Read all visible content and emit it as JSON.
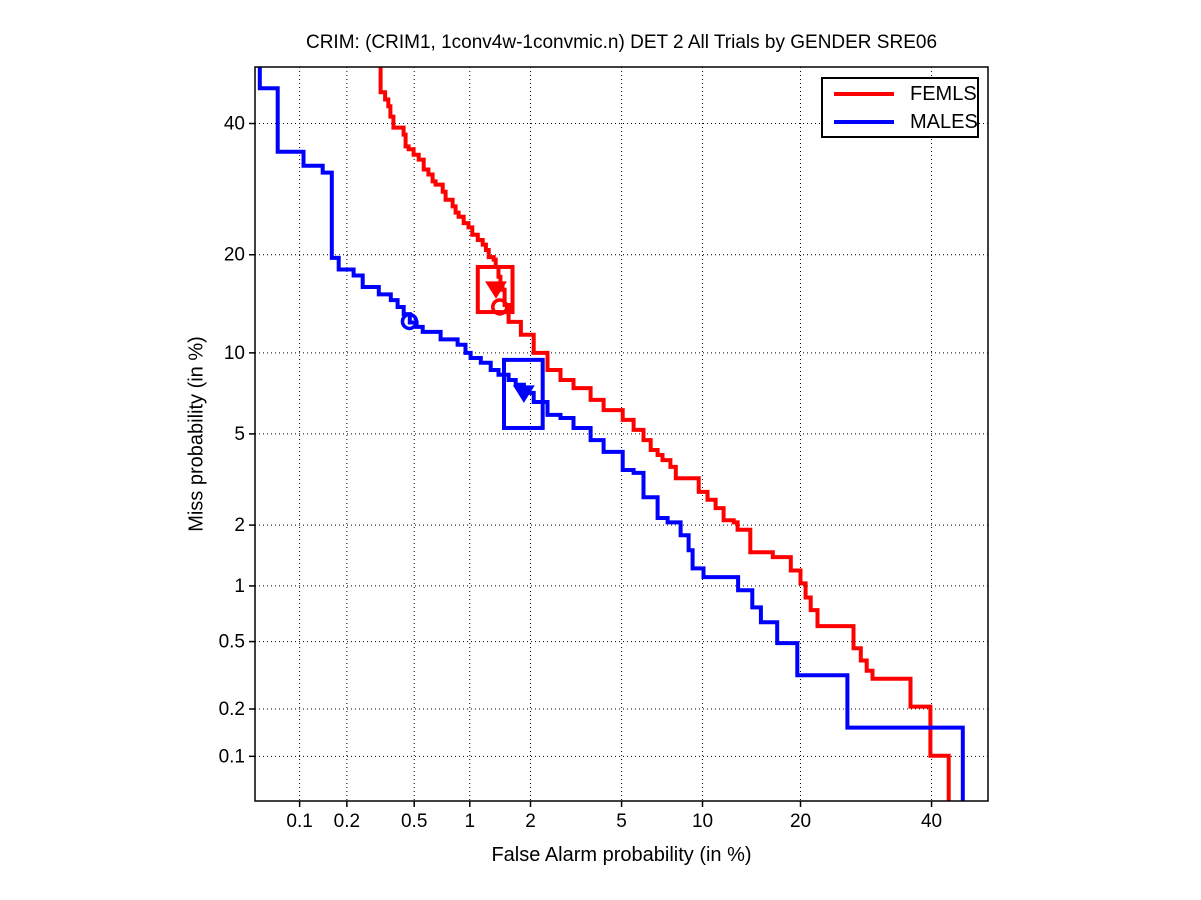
{
  "chart_data": {
    "type": "line",
    "variant": "DET curve, step plot, probit (normal-deviate) scale on both axes",
    "title": "CRIM: (CRIM1, 1conv4w-1convmic.n) DET 2 All Trials by GENDER SRE06",
    "xlabel": "False Alarm probability (in %)",
    "ylabel": "Miss probability (in %)",
    "xlim": [
      0.05,
      50
    ],
    "ylim": [
      0.05,
      50
    ],
    "xticks": [
      0.1,
      0.2,
      0.5,
      1,
      2,
      5,
      10,
      20,
      40
    ],
    "xtick_labels": [
      "0.1",
      "0.2",
      "0.5",
      "1",
      "2",
      "5",
      "10",
      "20",
      "40"
    ],
    "yticks": [
      0.1,
      0.2,
      0.5,
      1,
      2,
      5,
      10,
      20,
      40
    ],
    "ytick_labels": [
      "0.1",
      "0.2",
      "0.5",
      "1",
      "2",
      "5",
      "10",
      "20",
      "40"
    ],
    "grid": "dotted",
    "grid_color": "#000000",
    "axis_color": "#000000",
    "background": "#ffffff",
    "legend_position": "top-right",
    "series": [
      {
        "name": "FEMLS",
        "color": "#ff0000",
        "line_width": 4,
        "points": [
          [
            0.32,
            50
          ],
          [
            0.32,
            45.5
          ],
          [
            0.34,
            45.5
          ],
          [
            0.34,
            44.2
          ],
          [
            0.355,
            44.2
          ],
          [
            0.355,
            43
          ],
          [
            0.365,
            43
          ],
          [
            0.365,
            41.2
          ],
          [
            0.38,
            41.2
          ],
          [
            0.38,
            39.3
          ],
          [
            0.435,
            39.3
          ],
          [
            0.435,
            38.1
          ],
          [
            0.447,
            38.1
          ],
          [
            0.447,
            36.1
          ],
          [
            0.465,
            36.1
          ],
          [
            0.465,
            35.6
          ],
          [
            0.496,
            35.6
          ],
          [
            0.496,
            34.7
          ],
          [
            0.53,
            34.7
          ],
          [
            0.53,
            33.9
          ],
          [
            0.565,
            33.9
          ],
          [
            0.565,
            32.3
          ],
          [
            0.6,
            32.3
          ],
          [
            0.6,
            31.5
          ],
          [
            0.633,
            31.5
          ],
          [
            0.633,
            30.4
          ],
          [
            0.657,
            30.4
          ],
          [
            0.657,
            29.9
          ],
          [
            0.718,
            29.9
          ],
          [
            0.718,
            28.8
          ],
          [
            0.745,
            28.8
          ],
          [
            0.745,
            27.6
          ],
          [
            0.812,
            27.6
          ],
          [
            0.812,
            26.6
          ],
          [
            0.842,
            26.6
          ],
          [
            0.842,
            25.7
          ],
          [
            0.874,
            25.7
          ],
          [
            0.874,
            25.1
          ],
          [
            0.93,
            25.1
          ],
          [
            0.93,
            24.2
          ],
          [
            0.985,
            24.2
          ],
          [
            0.985,
            23.6
          ],
          [
            1.03,
            23.6
          ],
          [
            1.03,
            22.6
          ],
          [
            1.1,
            22.6
          ],
          [
            1.1,
            21.9
          ],
          [
            1.165,
            21.9
          ],
          [
            1.165,
            21.3
          ],
          [
            1.21,
            21.3
          ],
          [
            1.21,
            20.6
          ],
          [
            1.25,
            20.6
          ],
          [
            1.25,
            19.7
          ],
          [
            1.325,
            19.7
          ],
          [
            1.325,
            19.4
          ],
          [
            1.355,
            19.4
          ],
          [
            1.355,
            18.5
          ],
          [
            1.4,
            18.5
          ],
          [
            1.4,
            17.35
          ],
          [
            1.43,
            17.35
          ],
          [
            1.43,
            16.45
          ],
          [
            1.465,
            16.45
          ],
          [
            1.465,
            15.9
          ],
          [
            1.5,
            15.9
          ],
          [
            1.5,
            14.3
          ],
          [
            1.57,
            14.3
          ],
          [
            1.57,
            12.66
          ],
          [
            1.8,
            12.66
          ],
          [
            1.8,
            11.5
          ],
          [
            2.07,
            11.5
          ],
          [
            2.07,
            10
          ],
          [
            2.4,
            10
          ],
          [
            2.4,
            8.72
          ],
          [
            2.75,
            8.72
          ],
          [
            2.75,
            8.03
          ],
          [
            3.14,
            8.03
          ],
          [
            3.14,
            7.5
          ],
          [
            3.72,
            7.5
          ],
          [
            3.72,
            6.78
          ],
          [
            4.22,
            6.78
          ],
          [
            4.22,
            6.2
          ],
          [
            5.05,
            6.2
          ],
          [
            5.05,
            5.68
          ],
          [
            5.58,
            5.68
          ],
          [
            5.58,
            5.19
          ],
          [
            6.1,
            5.19
          ],
          [
            6.1,
            4.72
          ],
          [
            6.5,
            4.72
          ],
          [
            6.5,
            4.3
          ],
          [
            6.9,
            4.3
          ],
          [
            6.9,
            4.1
          ],
          [
            7.2,
            4.1
          ],
          [
            7.2,
            3.9
          ],
          [
            7.7,
            3.9
          ],
          [
            7.7,
            3.65
          ],
          [
            8.05,
            3.65
          ],
          [
            8.05,
            3.26
          ],
          [
            9.7,
            3.26
          ],
          [
            9.7,
            2.84
          ],
          [
            10.4,
            2.84
          ],
          [
            10.4,
            2.62
          ],
          [
            11.07,
            2.62
          ],
          [
            11.07,
            2.4
          ],
          [
            11.76,
            2.4
          ],
          [
            11.76,
            2.11
          ],
          [
            12.68,
            2.11
          ],
          [
            12.68,
            2.06
          ],
          [
            13.05,
            2.06
          ],
          [
            13.05,
            1.9
          ],
          [
            14.3,
            1.9
          ],
          [
            14.3,
            1.48
          ],
          [
            16.7,
            1.48
          ],
          [
            16.7,
            1.4
          ],
          [
            18.8,
            1.4
          ],
          [
            18.8,
            1.2
          ],
          [
            20,
            1.2
          ],
          [
            20,
            1.03
          ],
          [
            20.65,
            1.03
          ],
          [
            20.65,
            0.87
          ],
          [
            21.3,
            0.87
          ],
          [
            21.3,
            0.745
          ],
          [
            22.2,
            0.745
          ],
          [
            22.2,
            0.61
          ],
          [
            27.3,
            0.61
          ],
          [
            27.3,
            0.458
          ],
          [
            28.4,
            0.458
          ],
          [
            28.4,
            0.39
          ],
          [
            29.3,
            0.39
          ],
          [
            29.3,
            0.34
          ],
          [
            30.2,
            0.34
          ],
          [
            30.2,
            0.305
          ],
          [
            36.4,
            0.305
          ],
          [
            36.4,
            0.207
          ],
          [
            39.8,
            0.207
          ],
          [
            39.8,
            0.101
          ],
          [
            43,
            0.101
          ],
          [
            43,
            0.05
          ]
        ],
        "box": {
          "fa": [
            1.1,
            1.64
          ],
          "miss": [
            13.6,
            18.5
          ]
        },
        "markers": [
          {
            "shape": "triangle-down",
            "filled": true,
            "fa": 1.36,
            "miss": 16.0
          },
          {
            "shape": "circle",
            "filled": false,
            "fa": 1.42,
            "miss": 14.1
          }
        ]
      },
      {
        "name": "MALES",
        "color": "#0000ff",
        "line_width": 4,
        "points": [
          [
            0.054,
            50
          ],
          [
            0.054,
            46.2
          ],
          [
            0.0715,
            46.2
          ],
          [
            0.0715,
            35.2
          ],
          [
            0.106,
            35.2
          ],
          [
            0.106,
            32.9
          ],
          [
            0.141,
            32.9
          ],
          [
            0.141,
            31.8
          ],
          [
            0.161,
            31.8
          ],
          [
            0.161,
            19.6
          ],
          [
            0.178,
            19.6
          ],
          [
            0.178,
            18.2
          ],
          [
            0.22,
            18.2
          ],
          [
            0.22,
            17.5
          ],
          [
            0.25,
            17.5
          ],
          [
            0.25,
            16.2
          ],
          [
            0.312,
            16.2
          ],
          [
            0.312,
            15.4
          ],
          [
            0.367,
            15.4
          ],
          [
            0.367,
            14.8
          ],
          [
            0.402,
            14.8
          ],
          [
            0.402,
            14.1
          ],
          [
            0.436,
            14.1
          ],
          [
            0.436,
            13.4
          ],
          [
            0.472,
            13.4
          ],
          [
            0.472,
            12.6
          ],
          [
            0.516,
            12.6
          ],
          [
            0.516,
            12.2
          ],
          [
            0.558,
            12.2
          ],
          [
            0.558,
            11.75
          ],
          [
            0.7,
            11.75
          ],
          [
            0.7,
            11.1
          ],
          [
            0.863,
            11.1
          ],
          [
            0.863,
            10.65
          ],
          [
            0.95,
            10.65
          ],
          [
            0.95,
            10
          ],
          [
            1.01,
            10
          ],
          [
            1.01,
            9.6
          ],
          [
            1.14,
            9.6
          ],
          [
            1.14,
            9.24
          ],
          [
            1.28,
            9.24
          ],
          [
            1.28,
            8.72
          ],
          [
            1.4,
            8.72
          ],
          [
            1.4,
            8.38
          ],
          [
            1.57,
            8.38
          ],
          [
            1.57,
            8.03
          ],
          [
            1.7,
            8.03
          ],
          [
            1.7,
            7.71
          ],
          [
            1.86,
            7.71
          ],
          [
            1.86,
            7.2
          ],
          [
            2.07,
            7.2
          ],
          [
            2.07,
            6.66
          ],
          [
            2.4,
            6.66
          ],
          [
            2.4,
            5.94
          ],
          [
            2.75,
            5.94
          ],
          [
            2.75,
            5.78
          ],
          [
            3.14,
            5.78
          ],
          [
            3.14,
            5.28
          ],
          [
            3.72,
            5.28
          ],
          [
            3.72,
            4.72
          ],
          [
            4.22,
            4.72
          ],
          [
            4.22,
            4.22
          ],
          [
            5.05,
            4.22
          ],
          [
            5.05,
            3.54
          ],
          [
            5.58,
            3.54
          ],
          [
            5.58,
            3.44
          ],
          [
            6.1,
            3.44
          ],
          [
            6.1,
            2.69
          ],
          [
            6.9,
            2.69
          ],
          [
            6.9,
            2.16
          ],
          [
            7.52,
            2.16
          ],
          [
            7.52,
            2.06
          ],
          [
            8.38,
            2.06
          ],
          [
            8.38,
            1.79
          ],
          [
            8.95,
            1.79
          ],
          [
            8.95,
            1.515
          ],
          [
            9.24,
            1.515
          ],
          [
            9.24,
            1.23
          ],
          [
            10.08,
            1.23
          ],
          [
            10.08,
            1.11
          ],
          [
            13.1,
            1.11
          ],
          [
            13.1,
            0.95
          ],
          [
            14.5,
            0.95
          ],
          [
            14.5,
            0.77
          ],
          [
            15.4,
            0.77
          ],
          [
            15.4,
            0.64
          ],
          [
            17.2,
            0.64
          ],
          [
            17.2,
            0.49
          ],
          [
            19.6,
            0.49
          ],
          [
            19.6,
            0.32
          ],
          [
            26.4,
            0.32
          ],
          [
            26.4,
            0.153
          ],
          [
            45.5,
            0.153
          ],
          [
            45.5,
            0.05
          ]
        ],
        "box": {
          "fa": [
            1.49,
            2.28
          ],
          "miss": [
            5.28,
            9.46
          ]
        },
        "markers": [
          {
            "shape": "triangle-down",
            "filled": true,
            "fa": 1.86,
            "miss": 7.2
          },
          {
            "shape": "circle",
            "filled": false,
            "fa": 0.47,
            "miss": 12.7
          }
        ]
      }
    ]
  }
}
